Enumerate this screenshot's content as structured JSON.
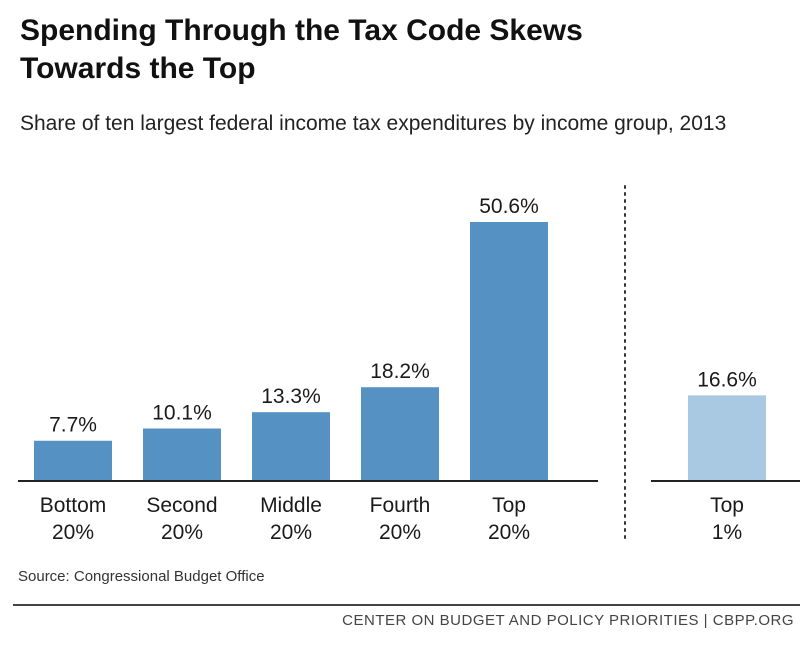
{
  "header": {
    "title_line1": "Spending Through the Tax Code Skews",
    "title_line2": "Towards the Top",
    "subtitle": "Share of ten largest federal income tax expenditures by income group, 2013"
  },
  "chart_data": {
    "type": "bar",
    "title": "Spending Through the Tax Code Skews Towards the Top",
    "subtitle": "Share of ten largest federal income tax expenditures by income group, 2013",
    "unit": "%",
    "groups": [
      {
        "categories": [
          [
            "Bottom",
            "20%"
          ],
          [
            "Second",
            "20%"
          ],
          [
            "Middle",
            "20%"
          ],
          [
            "Fourth",
            "20%"
          ],
          [
            "Top",
            "20%"
          ]
        ],
        "values": [
          7.7,
          10.1,
          13.3,
          18.2,
          50.6
        ],
        "labels": [
          "7.7%",
          "10.1%",
          "13.3%",
          "18.2%",
          "50.6%"
        ],
        "color": "#5592c3"
      },
      {
        "categories": [
          [
            "Top",
            "1%"
          ]
        ],
        "values": [
          16.6
        ],
        "labels": [
          "16.6%"
        ],
        "color": "#a9c8e1"
      }
    ],
    "separator": "dotted vertical line between quintile group and top 1%",
    "grid": false,
    "ylim": [
      0,
      50.6
    ]
  },
  "source": "Source: Congressional Budget Office",
  "footer": "CENTER ON BUDGET AND POLICY PRIORITIES | CBPP.ORG"
}
